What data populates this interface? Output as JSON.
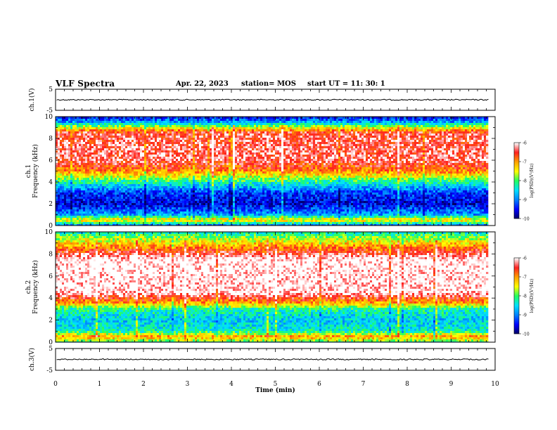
{
  "header": {
    "title": "VLF Spectra",
    "date": "Apr. 22, 2023",
    "station": "station= MOS",
    "start": "start  UT  =   11: 30: 1"
  },
  "colors": {
    "spectrogram_scale": [
      "#000060",
      "#0000ff",
      "#0080ff",
      "#00e0ff",
      "#20ff60",
      "#ffff00",
      "#ffa000",
      "#ff2020",
      "#ffffff"
    ]
  },
  "chart_data": [
    {
      "type": "line",
      "panel": "ch1-waveform",
      "ylabel": "ch.1(V)",
      "yticks": [
        "5",
        "-5"
      ],
      "ylim": [
        -5,
        5
      ],
      "xlim": [
        0,
        10
      ],
      "level": 0
    },
    {
      "type": "heatmap",
      "panel": "ch1-spectrogram",
      "ylabel": "ch.1\nFrequency (kHz)",
      "yticks": [
        "0",
        "2",
        "4",
        "6",
        "8",
        "10"
      ],
      "ylim": [
        0,
        10
      ],
      "xlim": [
        0,
        10
      ],
      "data_end": 9.85,
      "profile": [
        {
          "f": 0.0,
          "v": -9.0
        },
        {
          "f": 0.5,
          "v": -7.2
        },
        {
          "f": 1.0,
          "v": -8.8
        },
        {
          "f": 2.0,
          "v": -9.6
        },
        {
          "f": 3.0,
          "v": -9.3
        },
        {
          "f": 4.0,
          "v": -8.2
        },
        {
          "f": 5.0,
          "v": -6.9
        },
        {
          "f": 6.0,
          "v": -6.3
        },
        {
          "f": 8.5,
          "v": -6.4
        },
        {
          "f": 9.0,
          "v": -7.5
        },
        {
          "f": 9.5,
          "v": -8.8
        },
        {
          "f": 10.0,
          "v": -9.5
        }
      ],
      "colorbar": {
        "label": "log(PSD)(V²/Hz)",
        "ticks": [
          "-6",
          "-7",
          "-8",
          "-9",
          "-10"
        ],
        "range": [
          -10,
          -6
        ]
      }
    },
    {
      "type": "heatmap",
      "panel": "ch2-spectrogram",
      "ylabel": "ch.2\nFrequency (kHz)",
      "yticks": [
        "0",
        "2",
        "4",
        "6",
        "8",
        "10"
      ],
      "ylim": [
        0,
        10
      ],
      "xlim": [
        0,
        10
      ],
      "data_end": 9.85,
      "profile": [
        {
          "f": 0.0,
          "v": -8.0
        },
        {
          "f": 0.5,
          "v": -7.0
        },
        {
          "f": 1.0,
          "v": -8.3
        },
        {
          "f": 2.0,
          "v": -8.6
        },
        {
          "f": 3.0,
          "v": -8.2
        },
        {
          "f": 3.5,
          "v": -7.1
        },
        {
          "f": 4.5,
          "v": -6.0
        },
        {
          "f": 7.5,
          "v": -5.9
        },
        {
          "f": 8.5,
          "v": -6.8
        },
        {
          "f": 9.5,
          "v": -7.8
        },
        {
          "f": 10.0,
          "v": -8.4
        }
      ],
      "colorbar": {
        "label": "log(PSD)(V²/Hz)",
        "ticks": [
          "-6",
          "-7",
          "-8",
          "-9",
          "-10"
        ],
        "range": [
          -10,
          -6
        ]
      }
    },
    {
      "type": "line",
      "panel": "ch3-waveform",
      "ylabel": "ch.3(V)",
      "yticks": [
        "5",
        "-5"
      ],
      "ylim": [
        -5,
        5
      ],
      "xlim": [
        0,
        10
      ],
      "level": 0,
      "xlabel": "Time (min)",
      "xticks": [
        "0",
        "1",
        "2",
        "3",
        "4",
        "5",
        "6",
        "7",
        "8",
        "9",
        "10"
      ]
    }
  ]
}
